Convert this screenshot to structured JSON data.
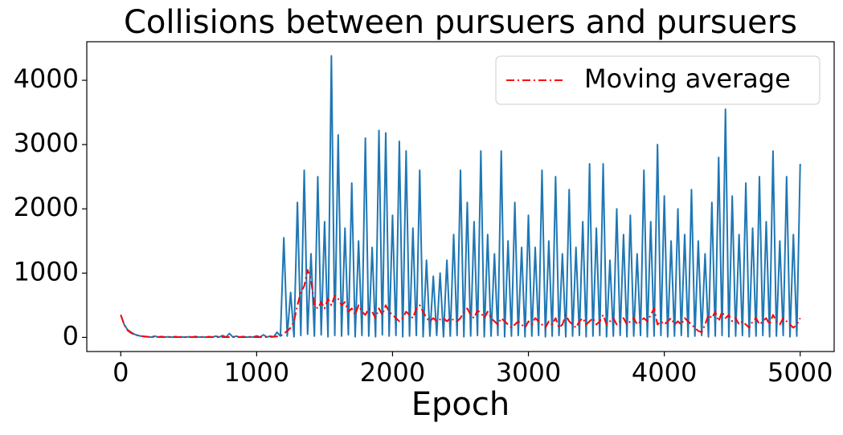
{
  "chart_data": {
    "type": "line",
    "title": "Collisions between pursuers and pursuers",
    "x_label": "Epoch",
    "x": [
      0,
      25,
      50,
      75,
      100,
      125,
      150,
      175,
      200,
      225,
      250,
      275,
      300,
      325,
      350,
      375,
      400,
      425,
      450,
      475,
      500,
      525,
      550,
      575,
      600,
      625,
      650,
      675,
      700,
      725,
      750,
      775,
      800,
      825,
      850,
      875,
      900,
      925,
      950,
      975,
      1000,
      1025,
      1050,
      1075,
      1100,
      1125,
      1150,
      1175,
      1200,
      1225,
      1250,
      1275,
      1300,
      1325,
      1350,
      1375,
      1400,
      1425,
      1450,
      1475,
      1500,
      1525,
      1550,
      1575,
      1600,
      1625,
      1650,
      1675,
      1700,
      1725,
      1750,
      1775,
      1800,
      1825,
      1850,
      1875,
      1900,
      1925,
      1950,
      1975,
      2000,
      2025,
      2050,
      2075,
      2100,
      2125,
      2150,
      2175,
      2200,
      2225,
      2250,
      2275,
      2300,
      2325,
      2350,
      2375,
      2400,
      2425,
      2450,
      2475,
      2500,
      2525,
      2550,
      2575,
      2600,
      2625,
      2650,
      2675,
      2700,
      2725,
      2750,
      2775,
      2800,
      2825,
      2850,
      2875,
      2900,
      2925,
      2950,
      2975,
      3000,
      3025,
      3050,
      3075,
      3100,
      3125,
      3150,
      3175,
      3200,
      3225,
      3250,
      3275,
      3300,
      3325,
      3350,
      3375,
      3400,
      3425,
      3450,
      3475,
      3500,
      3525,
      3550,
      3575,
      3600,
      3625,
      3650,
      3675,
      3700,
      3725,
      3750,
      3775,
      3800,
      3825,
      3850,
      3875,
      3900,
      3925,
      3950,
      3975,
      4000,
      4025,
      4050,
      4075,
      4100,
      4125,
      4150,
      4175,
      4200,
      4225,
      4250,
      4275,
      4300,
      4325,
      4350,
      4375,
      4400,
      4425,
      4450,
      4475,
      4500,
      4525,
      4550,
      4575,
      4600,
      4625,
      4650,
      4675,
      4700,
      4725,
      4750,
      4775,
      4800,
      4825,
      4850,
      4875,
      4900,
      4925,
      4950,
      4975,
      5000
    ],
    "series": [
      {
        "color": "#1f77b4",
        "linestyle": "solid",
        "values": [
          350,
          200,
          120,
          80,
          50,
          30,
          20,
          15,
          10,
          5,
          20,
          5,
          15,
          5,
          10,
          3,
          12,
          5,
          8,
          3,
          10,
          5,
          15,
          4,
          8,
          3,
          12,
          5,
          20,
          5,
          30,
          4,
          60,
          5,
          20,
          5,
          15,
          3,
          10,
          5,
          25,
          5,
          40,
          5,
          20,
          8,
          80,
          20,
          1550,
          20,
          700,
          10,
          2100,
          30,
          2600,
          50,
          1300,
          20,
          2500,
          40,
          1800,
          10,
          4380,
          30,
          3150,
          20,
          1700,
          40,
          2400,
          10,
          1500,
          30,
          3100,
          20,
          1400,
          10,
          3220,
          40,
          3180,
          20,
          1900,
          30,
          3050,
          10,
          2900,
          20,
          1700,
          30,
          2600,
          10,
          1200,
          20,
          950,
          30,
          1000,
          10,
          1200,
          20,
          1600,
          30,
          2600,
          10,
          2100,
          20,
          1800,
          30,
          2900,
          10,
          1600,
          20,
          1300,
          30,
          2900,
          10,
          1500,
          20,
          2100,
          30,
          1400,
          10,
          1900,
          20,
          1400,
          30,
          2600,
          10,
          1500,
          20,
          2500,
          30,
          1300,
          10,
          2300,
          20,
          1400,
          30,
          1800,
          10,
          2700,
          20,
          1700,
          30,
          2700,
          10,
          1200,
          20,
          2000,
          30,
          1600,
          10,
          1900,
          20,
          1300,
          30,
          2600,
          10,
          1800,
          20,
          3000,
          30,
          2200,
          10,
          1500,
          20,
          2000,
          30,
          1600,
          10,
          2300,
          20,
          1500,
          30,
          1300,
          10,
          2100,
          20,
          2800,
          30,
          3550,
          10,
          2200,
          20,
          1600,
          30,
          2400,
          10,
          1700,
          20,
          2500,
          30,
          1800,
          10,
          2900,
          20,
          1500,
          30,
          2500,
          10,
          1600,
          20,
          2700
        ]
      },
      {
        "name": "Moving average",
        "color": "#ff0000",
        "linestyle": "dashdot",
        "values": [
          350,
          200,
          110,
          70,
          45,
          30,
          20,
          12,
          8,
          6,
          6,
          6,
          5,
          5,
          5,
          5,
          5,
          5,
          5,
          5,
          5,
          5,
          5,
          5,
          5,
          5,
          5,
          5,
          5,
          5,
          5,
          5,
          5,
          5,
          5,
          5,
          5,
          5,
          5,
          5,
          5,
          5,
          6,
          6,
          8,
          10,
          15,
          20,
          60,
          100,
          150,
          250,
          500,
          700,
          800,
          1050,
          900,
          500,
          450,
          550,
          450,
          600,
          500,
          650,
          600,
          500,
          550,
          400,
          450,
          350,
          500,
          400,
          350,
          450,
          400,
          300,
          450,
          350,
          500,
          400,
          350,
          300,
          250,
          300,
          400,
          350,
          300,
          450,
          500,
          400,
          300,
          250,
          300,
          250,
          280,
          300,
          250,
          300,
          270,
          250,
          300,
          400,
          450,
          350,
          300,
          420,
          380,
          300,
          400,
          300,
          250,
          200,
          300,
          250,
          200,
          150,
          200,
          250,
          200,
          150,
          250,
          200,
          300,
          250,
          200,
          150,
          250,
          200,
          300,
          150,
          200,
          350,
          250,
          200,
          150,
          250,
          300,
          200,
          250,
          300,
          200,
          250,
          350,
          200,
          250,
          300,
          200,
          250,
          300,
          200,
          250,
          300,
          200,
          250,
          300,
          250,
          350,
          450,
          200,
          250,
          200,
          250,
          300,
          200,
          250,
          200,
          300,
          250,
          200,
          150,
          100,
          80,
          200,
          350,
          300,
          400,
          250,
          400,
          300,
          350,
          250,
          300,
          200,
          250,
          200,
          150,
          250,
          300,
          200,
          250,
          300,
          200,
          350,
          250,
          200,
          300,
          250,
          200,
          150,
          200,
          300
        ]
      }
    ],
    "xlim": [
      -250,
      5250
    ],
    "ylim": [
      -220,
      4600
    ],
    "xticks": [
      0,
      1000,
      2000,
      3000,
      4000,
      5000
    ],
    "yticks": [
      0,
      1000,
      2000,
      3000,
      4000
    ],
    "grid": false,
    "legend": "upper right"
  }
}
